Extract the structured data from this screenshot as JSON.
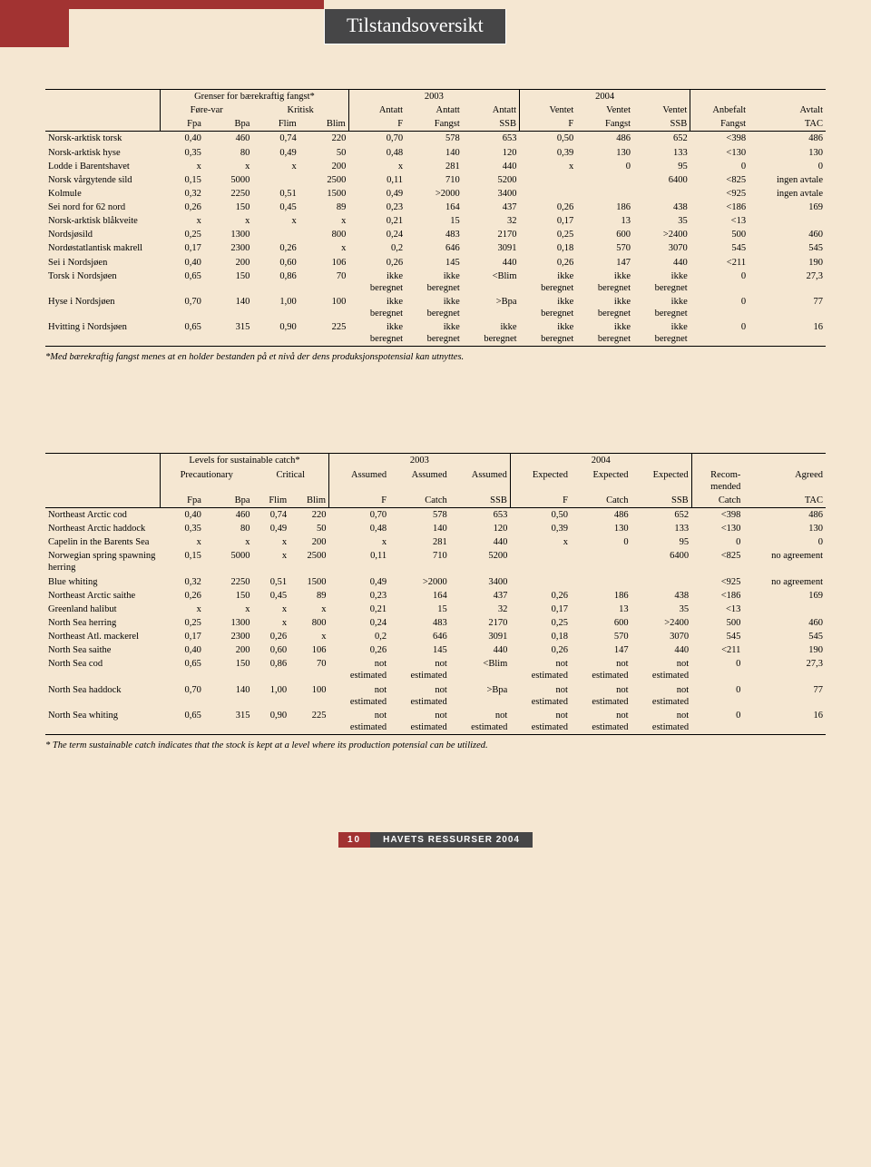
{
  "title": "Tilstandsoversikt",
  "footer": {
    "page": "10",
    "label": "HAVETS RESSURSER 2004"
  },
  "table1": {
    "group_headers": [
      "Grenser for bærekraftig fangst*",
      "2003",
      "2004"
    ],
    "sub_headers_r1": [
      "Føre-var",
      "Kritisk",
      "Antatt",
      "Antatt",
      "Antatt",
      "Ventet",
      "Ventet",
      "Ventet",
      "Anbefalt",
      "Avtalt"
    ],
    "sub_headers_r2": [
      "Fpa",
      "Bpa",
      "Flim",
      "Blim",
      "F",
      "Fangst",
      "SSB",
      "F",
      "Fangst",
      "SSB",
      "Fangst",
      "TAC"
    ],
    "footnote": "*Med bærekraftig fangst menes at en holder bestanden på et nivå der dens produksjonspotensial kan utnyttes.",
    "rows": [
      {
        "name": "Norsk-arktisk torsk",
        "c": [
          "0,40",
          "460",
          "0,74",
          "220",
          "0,70",
          "578",
          "653",
          "0,50",
          "486",
          "652",
          "<398",
          "486"
        ]
      },
      {
        "name": "Norsk-arktisk hyse",
        "c": [
          "0,35",
          "80",
          "0,49",
          "50",
          "0,48",
          "140",
          "120",
          "0,39",
          "130",
          "133",
          "<130",
          "130"
        ]
      },
      {
        "name": "Lodde i Barentshavet",
        "c": [
          "x",
          "x",
          "x",
          "200",
          "x",
          "281",
          "440",
          "x",
          "0",
          "95",
          "0",
          "0"
        ]
      },
      {
        "name": "Norsk vårgytende sild",
        "c": [
          "0,15",
          "5000",
          "",
          "2500",
          "0,11",
          "710",
          "5200",
          "",
          "",
          "6400",
          "<825",
          "ingen avtale"
        ]
      },
      {
        "name": "Kolmule",
        "c": [
          "0,32",
          "2250",
          "0,51",
          "1500",
          "0,49",
          ">2000",
          "3400",
          "",
          "",
          "",
          "<925",
          "ingen avtale"
        ]
      },
      {
        "name": "Sei nord for 62 nord",
        "c": [
          "0,26",
          "150",
          "0,45",
          "89",
          "0,23",
          "164",
          "437",
          "0,26",
          "186",
          "438",
          "<186",
          "169"
        ]
      },
      {
        "name": "Norsk-arktisk blåkveite",
        "c": [
          "x",
          "x",
          "x",
          "x",
          "0,21",
          "15",
          "32",
          "0,17",
          "13",
          "35",
          "<13",
          ""
        ]
      },
      {
        "name": "Nordsjøsild",
        "c": [
          "0,25",
          "1300",
          "",
          "800",
          "0,24",
          "483",
          "2170",
          "0,25",
          "600",
          ">2400",
          "500",
          "460"
        ]
      },
      {
        "name": "Nordøstatlantisk makrell",
        "c": [
          "0,17",
          "2300",
          "0,26",
          "x",
          "0,2",
          "646",
          "3091",
          "0,18",
          "570",
          "3070",
          "545",
          "545"
        ]
      },
      {
        "name": "Sei i Nordsjøen",
        "c": [
          "0,40",
          "200",
          "0,60",
          "106",
          "0,26",
          "145",
          "440",
          "0,26",
          "147",
          "440",
          "<211",
          "190"
        ]
      },
      {
        "name": "Torsk i Nordsjøen",
        "c": [
          "0,65",
          "150",
          "0,86",
          "70",
          "ikke beregnet",
          "ikke beregnet",
          "<Blim",
          "ikke beregnet",
          "ikke beregnet",
          "ikke beregnet",
          "0",
          "27,3"
        ]
      },
      {
        "name": "Hyse i Nordsjøen",
        "c": [
          "0,70",
          "140",
          "1,00",
          "100",
          "ikke beregnet",
          "ikke beregnet",
          ">Bpa",
          "ikke beregnet",
          "ikke beregnet",
          "ikke beregnet",
          "0",
          "77"
        ]
      },
      {
        "name": "Hvitting i Nordsjøen",
        "c": [
          "0,65",
          "315",
          "0,90",
          "225",
          "ikke beregnet",
          "ikke beregnet",
          "ikke beregnet",
          "ikke beregnet",
          "ikke beregnet",
          "ikke beregnet",
          "0",
          "16"
        ]
      }
    ]
  },
  "table2": {
    "group_headers": [
      "Levels for sustainable catch*",
      "2003",
      "2004"
    ],
    "sub_headers_r1": [
      "Precautionary",
      "Critical",
      "Assumed",
      "Assumed",
      "Assumed",
      "Expected",
      "Expected",
      "Expected",
      "Recom-\nmended",
      "Agreed"
    ],
    "sub_headers_r2": [
      "Fpa",
      "Bpa",
      "Flim",
      "Blim",
      "F",
      "Catch",
      "SSB",
      "F",
      "Catch",
      "SSB",
      "Catch",
      "TAC"
    ],
    "footnote": "* The term sustainable catch indicates that the stock is kept at a level where its production potensial can be utilized.",
    "rows": [
      {
        "name": "Northeast Arctic cod",
        "c": [
          "0,40",
          "460",
          "0,74",
          "220",
          "0,70",
          "578",
          "653",
          "0,50",
          "486",
          "652",
          "<398",
          "486"
        ]
      },
      {
        "name": "Northeast Arctic haddock",
        "c": [
          "0,35",
          "80",
          "0,49",
          "50",
          "0,48",
          "140",
          "120",
          "0,39",
          "130",
          "133",
          "<130",
          "130"
        ]
      },
      {
        "name": "Capelin in the Barents Sea",
        "c": [
          "x",
          "x",
          "x",
          "200",
          "x",
          "281",
          "440",
          "x",
          "0",
          "95",
          "0",
          "0"
        ]
      },
      {
        "name": "Norwegian spring spawning herring",
        "c": [
          "0,15",
          "5000",
          "x",
          "2500",
          "0,11",
          "710",
          "5200",
          "",
          "",
          "6400",
          "<825",
          "no agreement"
        ]
      },
      {
        "name": "Blue whiting",
        "c": [
          "0,32",
          "2250",
          "0,51",
          "1500",
          "0,49",
          ">2000",
          "3400",
          "",
          "",
          "",
          "<925",
          "no agreement"
        ]
      },
      {
        "name": "Northeast Arctic saithe",
        "c": [
          "0,26",
          "150",
          "0,45",
          "89",
          "0,23",
          "164",
          "437",
          "0,26",
          "186",
          "438",
          "<186",
          "169"
        ]
      },
      {
        "name": "Greenland halibut",
        "c": [
          "x",
          "x",
          "x",
          "x",
          "0,21",
          "15",
          "32",
          "0,17",
          "13",
          "35",
          "<13",
          ""
        ]
      },
      {
        "name": "North Sea herring",
        "c": [
          "0,25",
          "1300",
          "x",
          "800",
          "0,24",
          "483",
          "2170",
          "0,25",
          "600",
          ">2400",
          "500",
          "460"
        ]
      },
      {
        "name": "Northeast Atl. mackerel",
        "c": [
          "0,17",
          "2300",
          "0,26",
          "x",
          "0,2",
          "646",
          "3091",
          "0,18",
          "570",
          "3070",
          "545",
          "545"
        ]
      },
      {
        "name": "North Sea saithe",
        "c": [
          "0,40",
          "200",
          "0,60",
          "106",
          "0,26",
          "145",
          "440",
          "0,26",
          "147",
          "440",
          "<211",
          "190"
        ]
      },
      {
        "name": "North Sea cod",
        "c": [
          "0,65",
          "150",
          "0,86",
          "70",
          "not estimated",
          "not estimated",
          "<Blim",
          "not estimated",
          "not estimated",
          "not estimated",
          "0",
          "27,3"
        ]
      },
      {
        "name": "North Sea haddock",
        "c": [
          "0,70",
          "140",
          "1,00",
          "100",
          "not estimated",
          "not estimated",
          ">Bpa",
          "not estimated",
          "not estimated",
          "not estimated",
          "0",
          "77"
        ]
      },
      {
        "name": "North Sea whiting",
        "c": [
          "0,65",
          "315",
          "0,90",
          "225",
          "not estimated",
          "not estimated",
          "not estimated",
          "not estimated",
          "not estimated",
          "not estimated",
          "0",
          "16"
        ]
      }
    ]
  }
}
